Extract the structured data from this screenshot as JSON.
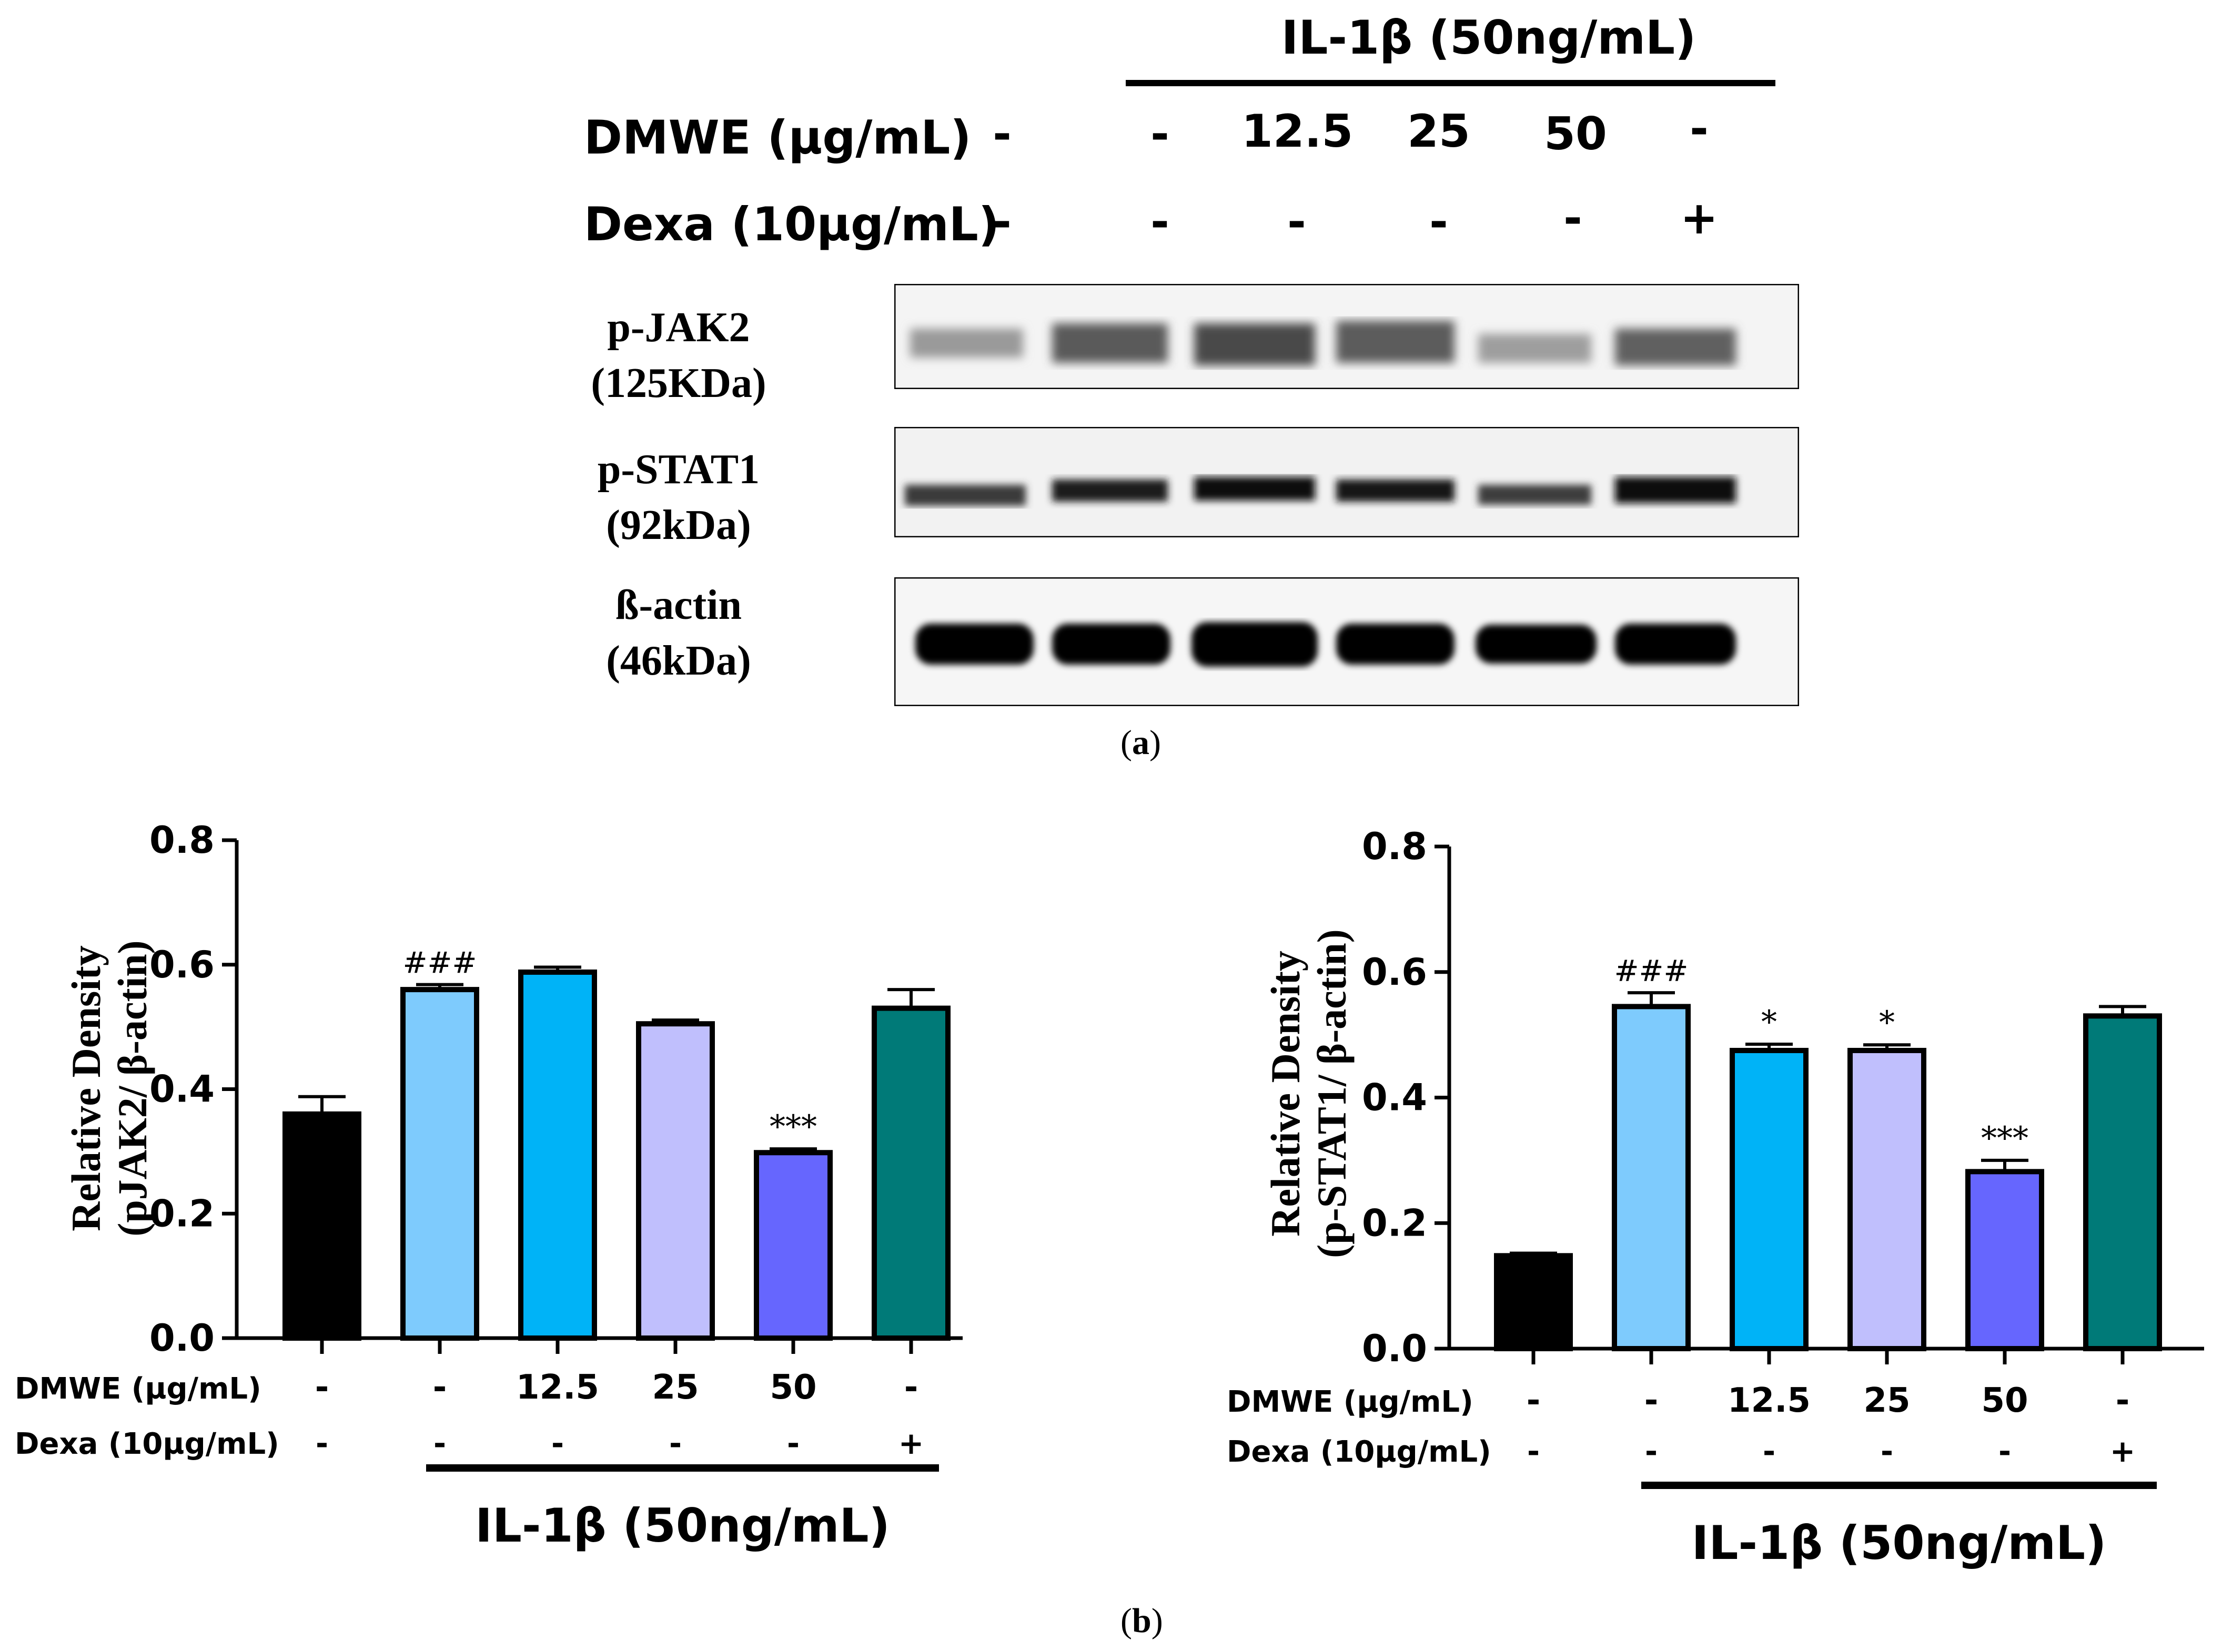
{
  "panel_a": {
    "il1b_header": "IL-1β (50ng/mL)",
    "dmwe_label": "DMWE (µg/mL)",
    "dexa_label": "Dexa (10µg/mL)",
    "dmwe_values": [
      "-",
      "-",
      "12.5",
      "25",
      "50",
      "-"
    ],
    "dexa_values": [
      "-",
      "-",
      "-",
      "-",
      "-",
      "+"
    ],
    "blots": [
      {
        "name": "p-JAK2",
        "mw": "(125KDa)"
      },
      {
        "name": "p-STAT1",
        "mw": "(92kDa)"
      },
      {
        "name": "ß-actin",
        "mw": "(46kDa)"
      }
    ],
    "caption_open": "(",
    "caption_letter": "a",
    "caption_close": ")"
  },
  "panel_b": {
    "caption_open": "(",
    "caption_letter": "b",
    "caption_close": ")"
  },
  "chart_data": [
    {
      "type": "bar",
      "ylabel_line1": "Relative Density",
      "ylabel_line2": "(pJAK2/ β-actin)",
      "ylim": [
        0,
        0.8
      ],
      "yticks": [
        "0.0",
        "0.2",
        "0.4",
        "0.6",
        "0.8"
      ],
      "ytick_values": [
        0,
        0.2,
        0.4,
        0.6,
        0.8
      ],
      "values": [
        0.36,
        0.56,
        0.588,
        0.505,
        0.298,
        0.53
      ],
      "errors": [
        0.028,
        0.008,
        0.008,
        0.006,
        0.006,
        0.03
      ],
      "significance": [
        "",
        "###",
        "",
        "",
        "***",
        ""
      ],
      "colors": [
        "#000000",
        "#7ecbfd",
        "#00b3f7",
        "#c0bffd",
        "#6666fe",
        "#007a78"
      ],
      "dmwe_label": "DMWE (µg/mL)",
      "dexa_label": "Dexa (10µg/mL)",
      "dmwe_values": [
        "-",
        "-",
        "12.5",
        "25",
        "50",
        "-"
      ],
      "dexa_values": [
        "-",
        "-",
        "-",
        "-",
        "-",
        "+"
      ],
      "group_label": "IL-1β (50ng/mL)"
    },
    {
      "type": "bar",
      "ylabel_line1": "Relative Density",
      "ylabel_line2": "(p-STAT1/ β-actin)",
      "ylim": [
        0,
        0.8
      ],
      "yticks": [
        "0.0",
        "0.2",
        "0.4",
        "0.6",
        "0.8"
      ],
      "ytick_values": [
        0,
        0.2,
        0.4,
        0.6,
        0.8
      ],
      "values": [
        0.148,
        0.545,
        0.475,
        0.475,
        0.282,
        0.53
      ],
      "errors": [
        0.004,
        0.022,
        0.01,
        0.009,
        0.018,
        0.015
      ],
      "significance": [
        "",
        "###",
        "*",
        "*",
        "***",
        ""
      ],
      "colors": [
        "#000000",
        "#7ecbfd",
        "#00b3f7",
        "#c0bffd",
        "#6666fe",
        "#007a78"
      ],
      "dmwe_label": "DMWE (µg/mL)",
      "dexa_label": "Dexa (10µg/mL)",
      "dmwe_values": [
        "-",
        "-",
        "12.5",
        "25",
        "50",
        "-"
      ],
      "dexa_values": [
        "-",
        "-",
        "-",
        "-",
        "-",
        "+"
      ],
      "group_label": "IL-1β (50ng/mL)"
    }
  ]
}
